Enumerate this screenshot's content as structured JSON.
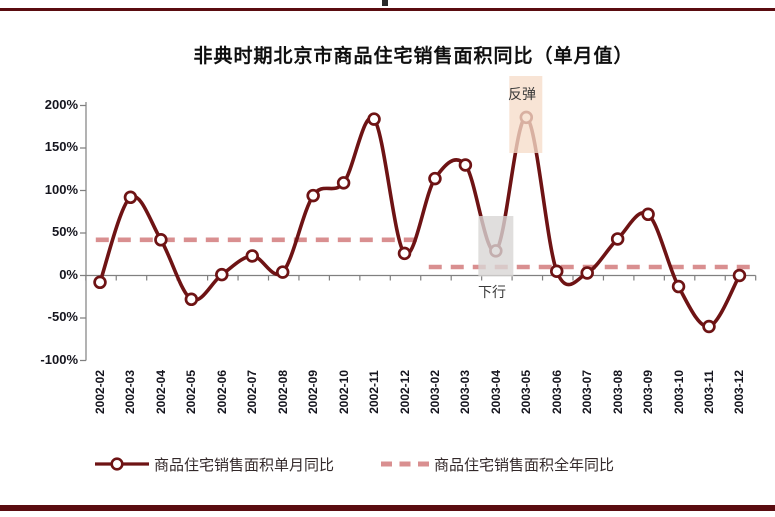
{
  "title": "非典时期北京市商品住宅销售面积同比（单月值）",
  "annotations": {
    "rebound": {
      "label": "反弹",
      "month": "2003-05"
    },
    "downturn": {
      "label": "下行",
      "month": "2003-04"
    }
  },
  "legend": [
    {
      "label": "商品住宅销售面积单月同比",
      "swatch": "line-with-circle-marker"
    },
    {
      "label": "商品住宅销售面积全年同比",
      "swatch": "dashed-line"
    }
  ],
  "colors": {
    "line": "#6e1314",
    "marker_fill": "#ffffff",
    "dashed_reference": "#d98f90",
    "axis": "#808080",
    "accent_bar": "#5a0c10",
    "rebound_highlight": "#f6ddc9",
    "downturn_highlight": "#d8d6d5",
    "tick_label": "#15151e"
  },
  "chart_data": {
    "type": "line",
    "title": "非典时期北京市商品住宅销售面积同比（单月值）",
    "categories": [
      "2002-02",
      "2002-03",
      "2002-04",
      "2002-05",
      "2002-06",
      "2002-07",
      "2002-08",
      "2002-09",
      "2002-10",
      "2002-11",
      "2002-12",
      "2003-02",
      "2003-03",
      "2003-04",
      "2003-05",
      "2003-06",
      "2003-07",
      "2003-08",
      "2003-09",
      "2003-10",
      "2003-11",
      "2003-12"
    ],
    "series": [
      {
        "name": "商品住宅销售面积单月同比",
        "type": "smooth-line-markers",
        "unit": "%",
        "values": [
          -8,
          92,
          42,
          -28,
          1,
          23,
          4,
          94,
          109,
          184,
          26,
          114,
          130,
          29,
          186,
          5,
          3,
          43,
          72,
          -13,
          -60,
          0
        ]
      },
      {
        "name": "商品住宅销售面积全年同比",
        "type": "dashed-reference-segments",
        "unit": "%",
        "segments": [
          {
            "period": "2002",
            "value": 42,
            "from": "2002-02",
            "to": "2002-12"
          },
          {
            "period": "2003",
            "value": 10,
            "from": "2003-02",
            "to": "2003-12"
          }
        ]
      }
    ],
    "yticks": [
      200,
      150,
      100,
      50,
      0,
      -50,
      -100
    ],
    "ytick_suffix": "%",
    "ylim": [
      -100,
      200
    ],
    "grid": false,
    "legend_position": "bottom",
    "highlight_regions": [
      {
        "label": "反弹",
        "month": "2003-05",
        "style": "peach"
      },
      {
        "label": "下行",
        "month": "2003-04",
        "style": "gray"
      }
    ]
  }
}
